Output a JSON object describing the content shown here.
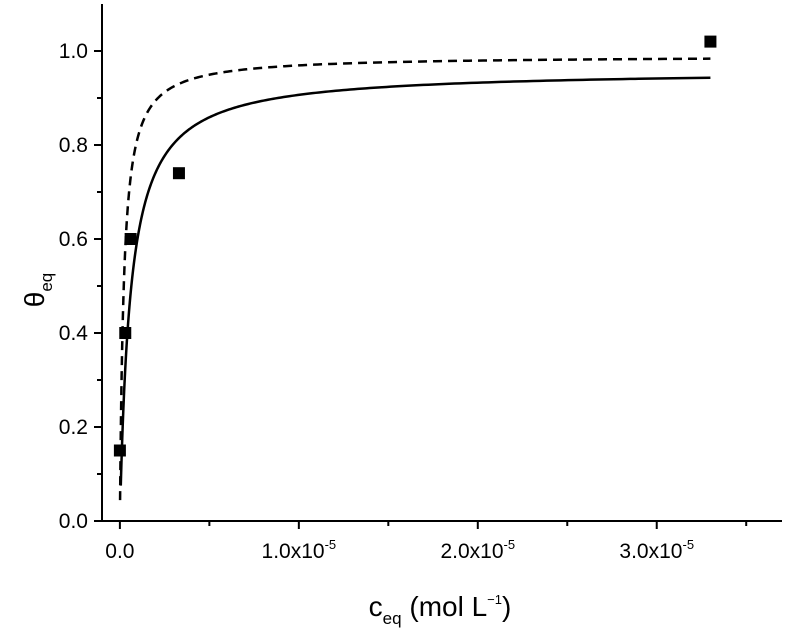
{
  "chart_data": {
    "type": "scatter",
    "title": "",
    "xlabel": {
      "main": "c",
      "sub": "eq",
      "unit_pre": " (mol L",
      "unit_sup": "−1",
      "unit_post": ")"
    },
    "ylabel": {
      "main": "θ",
      "sub": "eq"
    },
    "xlim": [
      -1e-06,
      3.7e-05
    ],
    "ylim": [
      0,
      1.1
    ],
    "x_ticks": [
      {
        "value": 0,
        "mantissa": "0.0",
        "exp": ""
      },
      {
        "value": 1e-05,
        "mantissa": "1.0x10",
        "exp": "-5"
      },
      {
        "value": 2e-05,
        "mantissa": "2.0x10",
        "exp": "-5"
      },
      {
        "value": 3e-05,
        "mantissa": "3.0x10",
        "exp": "-5"
      }
    ],
    "y_ticks": [
      {
        "value": 0.0,
        "label": "0.0"
      },
      {
        "value": 0.2,
        "label": "0.2"
      },
      {
        "value": 0.4,
        "label": "0.4"
      },
      {
        "value": 0.6,
        "label": "0.6"
      },
      {
        "value": 0.8,
        "label": "0.8"
      },
      {
        "value": 1.0,
        "label": "1.0"
      }
    ],
    "grid": false,
    "legend": "none",
    "series": [
      {
        "style": "markers",
        "marker": "square",
        "color": "#000000",
        "points": [
          {
            "x": 0.0,
            "y": 0.15
          },
          {
            "x": 3e-07,
            "y": 0.4
          },
          {
            "x": 6e-07,
            "y": 0.6
          },
          {
            "x": 3.3e-06,
            "y": 0.74
          },
          {
            "x": 3.3e-05,
            "y": 1.02
          }
        ]
      },
      {
        "style": "solid-line",
        "color": "#000000",
        "fit": {
          "model": "langmuir",
          "theta_max": 0.96,
          "K": 1700000
        },
        "x_range": [
          5e-08,
          3.3e-05
        ]
      },
      {
        "style": "dashed-line",
        "color": "#000000",
        "fit": {
          "model": "langmuir",
          "theta_max": 0.99,
          "K": 4700000
        },
        "x_range": [
          1e-08,
          3.3e-05
        ]
      }
    ]
  }
}
